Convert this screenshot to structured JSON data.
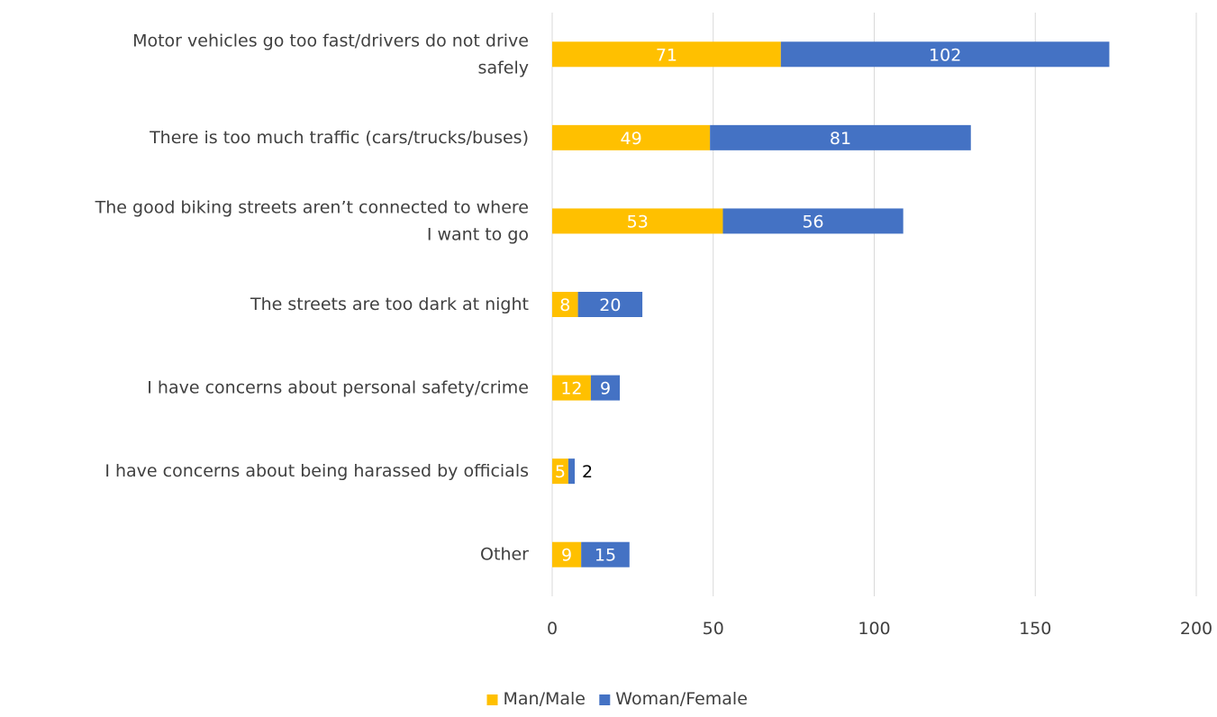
{
  "chart_data": {
    "type": "bar",
    "orientation": "horizontal",
    "stacked": true,
    "categories": [
      [
        "Motor vehicles go too fast/drivers do not drive",
        "safely"
      ],
      [
        "There is too much traffic (cars/trucks/buses)"
      ],
      [
        "The good biking streets aren’t connected to where",
        "I want to go"
      ],
      [
        "The streets are too dark at night"
      ],
      [
        "I have concerns about personal safety/crime"
      ],
      [
        "I have concerns about being harassed by officials"
      ],
      [
        "Other"
      ]
    ],
    "series": [
      {
        "name": "Man/Male",
        "color": "#FFC000",
        "values": [
          71,
          49,
          53,
          8,
          12,
          5,
          9
        ]
      },
      {
        "name": "Woman/Female",
        "color": "#4472C4",
        "values": [
          102,
          81,
          56,
          20,
          9,
          2,
          15
        ]
      }
    ],
    "xlim": [
      0,
      200
    ],
    "xticks": [
      0,
      50,
      100,
      150,
      200
    ],
    "grid": "vertical",
    "legend": "bottom-center"
  }
}
